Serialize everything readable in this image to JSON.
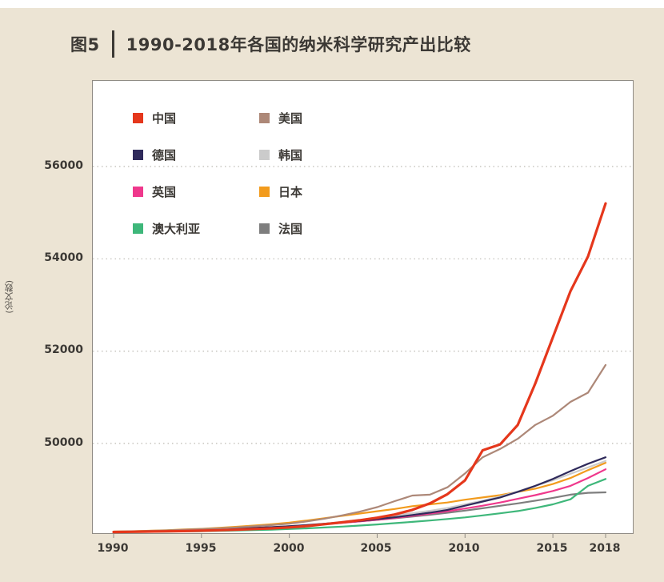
{
  "figure": {
    "label": "图5",
    "title": "1990-2018年各国的纳米科学研究产出比较"
  },
  "chart_data": {
    "type": "line",
    "title": "1990-2018年各国的纳米科学研究产出比较",
    "xlabel": "",
    "ylabel": "(论文数)",
    "x": [
      1990,
      1991,
      1992,
      1993,
      1994,
      1995,
      1996,
      1997,
      1998,
      1999,
      2000,
      2001,
      2002,
      2003,
      2004,
      2005,
      2006,
      2007,
      2008,
      2009,
      2010,
      2011,
      2012,
      2013,
      2014,
      2015,
      2016,
      2017,
      2018
    ],
    "xtick_labels": [
      "1990",
      "1995",
      "2000",
      "2005",
      "2010",
      "2015",
      "2018"
    ],
    "xtick_values": [
      1990,
      1995,
      2000,
      2005,
      2010,
      2015,
      2018
    ],
    "ytick_labels": [
      "56000",
      "54000",
      "52000",
      "50000"
    ],
    "ytick_values": [
      56000,
      54000,
      52000,
      50000
    ],
    "ylim": [
      48060,
      57860
    ],
    "grid": "dotted-horizontal",
    "legend_position": "top-left-inside",
    "series": [
      {
        "name": "中国",
        "color": "#e5371c",
        "values": [
          48080,
          48085,
          48090,
          48095,
          48100,
          48110,
          48120,
          48130,
          48145,
          48160,
          48180,
          48210,
          48250,
          48290,
          48335,
          48390,
          48460,
          48560,
          48700,
          48900,
          49200,
          49850,
          49980,
          50400,
          51300,
          52300,
          53300,
          54050,
          55200
        ]
      },
      {
        "name": "美国",
        "color": "#ad8878",
        "values": [
          48090,
          48095,
          48105,
          48115,
          48130,
          48145,
          48160,
          48180,
          48205,
          48230,
          48260,
          48310,
          48370,
          48440,
          48520,
          48620,
          48750,
          48870,
          48890,
          49050,
          49350,
          49700,
          49880,
          50100,
          50400,
          50600,
          50900,
          51100,
          51700
        ]
      },
      {
        "name": "德国",
        "color": "#2f2a5b",
        "values": [
          48085,
          48090,
          48095,
          48105,
          48115,
          48125,
          48140,
          48155,
          48170,
          48185,
          48205,
          48230,
          48260,
          48290,
          48320,
          48360,
          48400,
          48450,
          48500,
          48560,
          48650,
          48740,
          48830,
          48950,
          49080,
          49230,
          49400,
          49560,
          49700
        ]
      },
      {
        "name": "韩国",
        "color": "#cbcbcb",
        "values": [
          48080,
          48083,
          48087,
          48092,
          48098,
          48105,
          48115,
          48130,
          48150,
          48170,
          48195,
          48225,
          48260,
          48300,
          48340,
          48390,
          48440,
          48490,
          48540,
          48600,
          48680,
          48760,
          48850,
          48960,
          49080,
          49200,
          49340,
          49480,
          49620
        ]
      },
      {
        "name": "英国",
        "color": "#ef388c",
        "values": [
          48082,
          48086,
          48092,
          48100,
          48110,
          48120,
          48132,
          48146,
          48162,
          48180,
          48200,
          48225,
          48252,
          48280,
          48310,
          48345,
          48385,
          48430,
          48480,
          48530,
          48590,
          48650,
          48720,
          48800,
          48880,
          48970,
          49080,
          49250,
          49440
        ]
      },
      {
        "name": "日本",
        "color": "#f29b1d",
        "values": [
          48090,
          48098,
          48108,
          48120,
          48135,
          48150,
          48170,
          48195,
          48220,
          48250,
          48285,
          48330,
          48380,
          48430,
          48480,
          48530,
          48580,
          48640,
          48680,
          48720,
          48780,
          48830,
          48880,
          48950,
          49020,
          49120,
          49250,
          49420,
          49580
        ]
      },
      {
        "name": "澳大利亚",
        "color": "#3eb77a",
        "values": [
          48078,
          48080,
          48084,
          48088,
          48093,
          48098,
          48105,
          48113,
          48122,
          48132,
          48145,
          48160,
          48178,
          48198,
          48220,
          48245,
          48272,
          48300,
          48330,
          48362,
          48398,
          48440,
          48485,
          48535,
          48600,
          48680,
          48790,
          49080,
          49230
        ]
      },
      {
        "name": "法国",
        "color": "#7e7e7e",
        "values": [
          48084,
          48088,
          48094,
          48102,
          48112,
          48122,
          48135,
          48150,
          48166,
          48184,
          48204,
          48228,
          48255,
          48283,
          48312,
          48344,
          48378,
          48415,
          48455,
          48498,
          48545,
          48595,
          48648,
          48700,
          48760,
          48820,
          48890,
          48930,
          48940
        ]
      }
    ]
  },
  "colors": {
    "background": "#ece4d4",
    "plot_background": "#ffffff",
    "axis": "#8f8b84",
    "grid": "#bdbab3",
    "text": "#3c3935"
  }
}
